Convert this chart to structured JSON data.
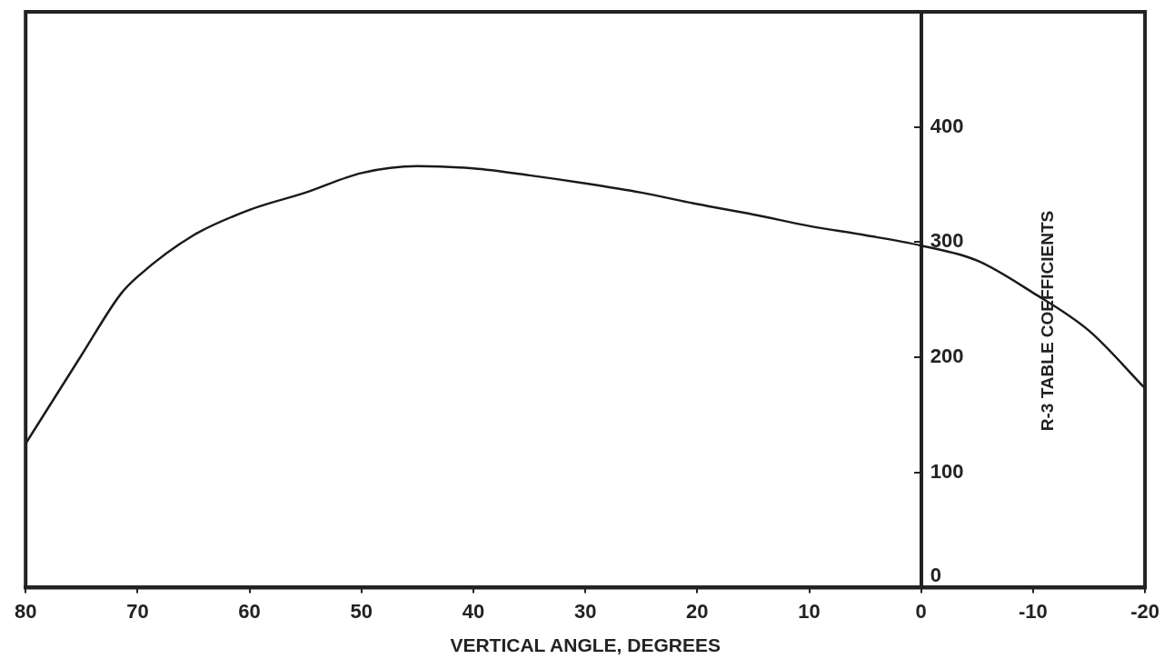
{
  "chart_data": {
    "type": "line",
    "xlabel": "VERTICAL ANGLE, DEGREES",
    "ylabel": "R-3 TABLE COEFFICIENTS",
    "x": [
      80,
      75,
      71.5,
      70,
      65,
      60,
      55,
      50,
      45,
      40,
      35,
      30,
      25,
      20,
      15,
      10,
      5,
      0,
      -5,
      -10,
      -15,
      -20
    ],
    "series": [
      {
        "color": "#1a1a1a",
        "values": [
          125,
          202,
          255,
          270,
          306,
          328,
          343,
          360,
          366,
          364,
          358,
          351,
          343,
          333,
          324,
          314,
          306,
          297,
          284,
          256,
          223,
          173
        ]
      }
    ],
    "xlim": [
      80,
      -20
    ],
    "xticks": [
      80,
      70,
      60,
      50,
      40,
      30,
      20,
      10,
      0,
      -10,
      -20
    ],
    "ylim": [
      0,
      500
    ],
    "yticks": [
      0,
      100,
      200,
      300,
      400
    ],
    "grid": false,
    "legend": false,
    "marker": "none",
    "line_style": "solid"
  }
}
